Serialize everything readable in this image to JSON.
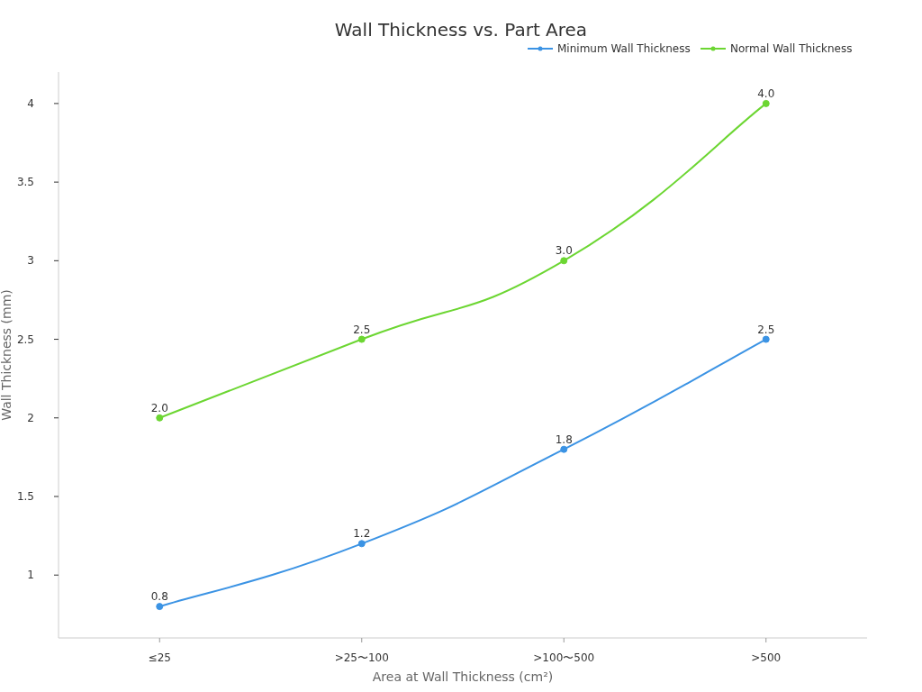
{
  "chart_data": {
    "type": "line",
    "title": "Wall Thickness vs. Part Area",
    "xlabel": "Area at Wall Thickness (cm²)",
    "ylabel": "Wall Thickness (mm)",
    "categories": [
      "≤25",
      ">25〜100",
      ">100〜500",
      ">500"
    ],
    "series": [
      {
        "name": "Minimum Wall Thickness",
        "color": "#3b93e4",
        "values": [
          0.8,
          1.2,
          1.8,
          2.5
        ],
        "value_labels": [
          "0.8",
          "1.2",
          "1.8",
          "2.5"
        ]
      },
      {
        "name": "Normal Wall Thickness",
        "color": "#6cd632",
        "values": [
          2.0,
          2.5,
          3.0,
          4.0
        ],
        "value_labels": [
          "2.0",
          "2.5",
          "3.0",
          "4.0"
        ]
      }
    ],
    "ylim": [
      0.6,
      4.2
    ],
    "yticks": [
      1,
      1.5,
      2,
      2.5,
      3,
      3.5,
      4
    ],
    "grid": false,
    "legend": "top right",
    "marker": "circle",
    "line_style": "solid"
  }
}
